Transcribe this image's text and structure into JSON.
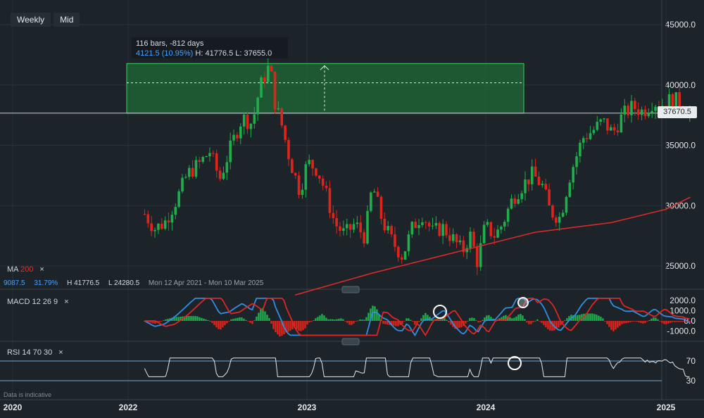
{
  "toolbar": {
    "weekly": "Weekly",
    "mid": "Mid"
  },
  "measure": {
    "line1": "116 bars, -812 days",
    "change": "4121.5 (10.95%)",
    "hl": "H: 41776.5 L: 37655.0"
  },
  "current_price": "37670.5",
  "ma_indicator": {
    "name": "MA",
    "period": "200",
    "close": "×"
  },
  "ma_stats": {
    "value": "9087.5",
    "pct": "31.79%",
    "high": "H 41776.5",
    "low": "L 24280.5",
    "range": "Mon 12 Apr 2021 - Mon 10 Mar 2025"
  },
  "macd_indicator": {
    "name": "MACD",
    "params": "12 26 9",
    "close": "×"
  },
  "rsi_indicator": {
    "name": "RSI",
    "params": "14 70 30",
    "close": "×"
  },
  "disclaimer": "Data is indicative",
  "colors": {
    "up": "#1fae4b",
    "down": "#e0241b",
    "ma_line": "#d62b2b",
    "macd_line": "#2f8fe0",
    "signal_line": "#e02525",
    "zone": "#1f6b35"
  },
  "chart_data": {
    "type": "candlestick",
    "price_axis": {
      "ylim": [
        22500,
        47000
      ],
      "ticks": [
        "45000.0",
        "40000.0",
        "35000.0",
        "30000.0",
        "25000.0"
      ]
    },
    "macd_axis": {
      "ylim": [
        -1500,
        2300
      ],
      "ticks": [
        "2000.0",
        "1000.0",
        "0.0",
        "-1000.0"
      ]
    },
    "rsi_axis": {
      "ylim": [
        0,
        100
      ],
      "ticks": [
        "70",
        "30"
      ]
    },
    "x_axis": {
      "ticks": [
        "2020",
        "2022",
        "2023",
        "2024",
        "2025"
      ]
    },
    "measurement_zone": {
      "low": 37655.0,
      "high": 41776.5,
      "start": "2021-12-27",
      "end": "2024-03-18"
    },
    "price_path": [
      [
        "2021-01-04",
        29300
      ],
      [
        "2021-02-01",
        28100
      ],
      [
        "2021-03-01",
        28600
      ],
      [
        "2021-04-05",
        30600
      ],
      [
        "2021-05-03",
        32600
      ],
      [
        "2021-06-07",
        33500
      ],
      [
        "2021-07-05",
        34500
      ],
      [
        "2021-08-02",
        32200
      ],
      [
        "2021-09-06",
        35200
      ],
      [
        "2021-10-04",
        37300
      ],
      [
        "2021-11-01",
        36800
      ],
      [
        "2021-11-22",
        39800
      ],
      [
        "2021-12-20",
        41700
      ],
      [
        "2022-01-03",
        38600
      ],
      [
        "2022-01-24",
        36500
      ],
      [
        "2022-02-14",
        33800
      ],
      [
        "2022-03-14",
        31200
      ],
      [
        "2022-04-04",
        33600
      ],
      [
        "2022-05-02",
        33000
      ],
      [
        "2022-05-23",
        31300
      ],
      [
        "2022-06-20",
        28500
      ],
      [
        "2022-07-18",
        27600
      ],
      [
        "2022-08-15",
        28500
      ],
      [
        "2022-09-12",
        27400
      ],
      [
        "2022-10-03",
        31700
      ],
      [
        "2022-10-31",
        28700
      ],
      [
        "2022-11-28",
        27000
      ],
      [
        "2022-12-26",
        25800
      ],
      [
        "2023-01-23",
        28200
      ],
      [
        "2023-02-20",
        29300
      ],
      [
        "2023-03-20",
        27800
      ],
      [
        "2023-04-17",
        28200
      ],
      [
        "2023-05-15",
        27300
      ],
      [
        "2023-06-12",
        26200
      ],
      [
        "2023-07-03",
        27600
      ],
      [
        "2023-07-24",
        25300
      ],
      [
        "2023-08-14",
        28300
      ],
      [
        "2023-09-11",
        27500
      ],
      [
        "2023-10-02",
        28500
      ],
      [
        "2023-10-30",
        30600
      ],
      [
        "2023-11-27",
        31700
      ],
      [
        "2023-12-25",
        32600
      ],
      [
        "2024-01-22",
        31600
      ],
      [
        "2024-02-12",
        29500
      ],
      [
        "2024-03-11",
        29000
      ],
      [
        "2024-04-08",
        32600
      ],
      [
        "2024-05-13",
        35600
      ],
      [
        "2024-06-10",
        36200
      ],
      [
        "2024-07-08",
        37000
      ],
      [
        "2024-08-05",
        36000
      ],
      [
        "2024-09-02",
        37500
      ],
      [
        "2024-09-30",
        38200
      ],
      [
        "2024-10-28",
        37800
      ],
      [
        "2024-11-25",
        38600
      ],
      [
        "2024-12-23",
        38400
      ],
      [
        "2025-01-20",
        38900
      ],
      [
        "2025-02-17",
        38300
      ],
      [
        "2025-03-10",
        37670
      ]
    ],
    "ma200": [
      [
        "2022-03-01",
        22600
      ],
      [
        "2022-10-01",
        24400
      ],
      [
        "2023-06-01",
        26200
      ],
      [
        "2024-01-01",
        27800
      ],
      [
        "2024-08-01",
        28600
      ],
      [
        "2025-01-01",
        29700
      ],
      [
        "2025-03-10",
        30700
      ]
    ]
  }
}
